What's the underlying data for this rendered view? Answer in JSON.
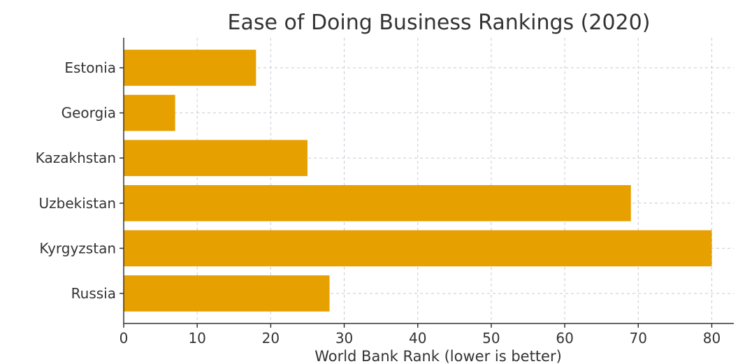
{
  "chart_data": {
    "type": "bar",
    "orientation": "horizontal",
    "title": "Ease of Doing Business Rankings (2020)",
    "xlabel": "World Bank Rank (lower is better)",
    "ylabel": "",
    "categories": [
      "Estonia",
      "Georgia",
      "Kazakhstan",
      "Uzbekistan",
      "Kyrgyzstan",
      "Russia"
    ],
    "values": [
      18,
      7,
      25,
      69,
      80,
      28
    ],
    "xlim": [
      0,
      83
    ],
    "xticks": [
      0,
      10,
      20,
      30,
      40,
      50,
      60,
      70,
      80
    ],
    "grid": true,
    "bar_color": "#E6A000"
  }
}
